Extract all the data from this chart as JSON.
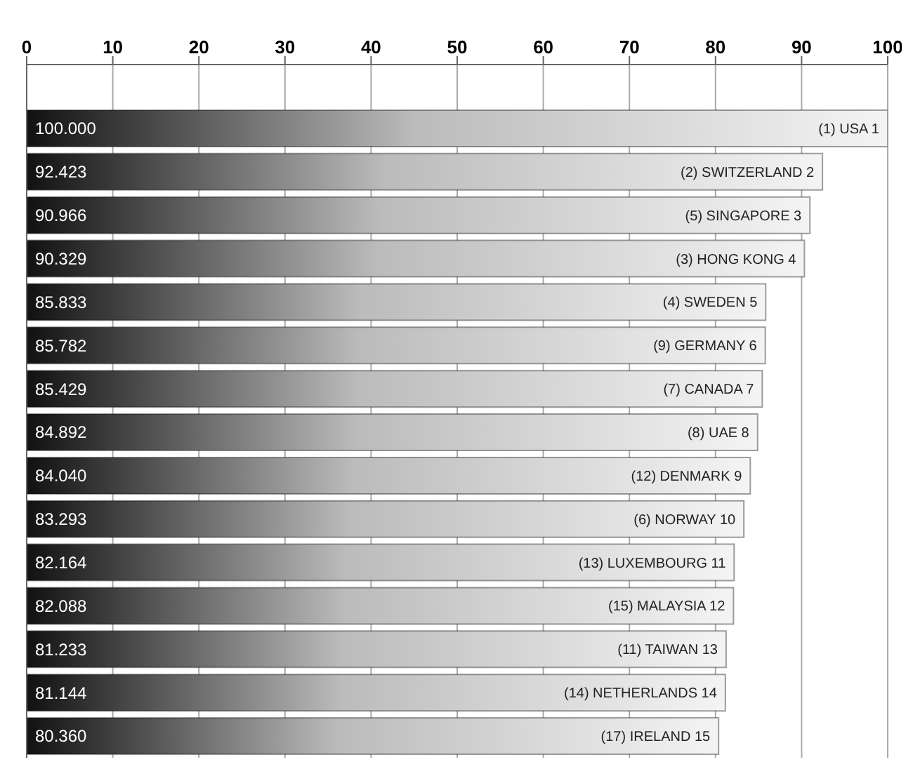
{
  "chart_data": {
    "type": "bar",
    "orientation": "horizontal",
    "categories": [
      "(1) USA 1",
      "(2) SWITZERLAND 2",
      "(5) SINGAPORE 3",
      "(3) HONG KONG 4",
      "(4) SWEDEN 5",
      "(9) GERMANY 6",
      "(7) CANADA 7",
      "(8) UAE 8",
      "(12) DENMARK 9",
      "(6) NORWAY 10",
      "(13) LUXEMBOURG 11",
      "(15) MALAYSIA 12",
      "(11) TAIWAN 13",
      "(14) NETHERLANDS 14",
      "(17) IRELAND 15"
    ],
    "values": [
      100.0,
      92.423,
      90.966,
      90.329,
      85.833,
      85.782,
      85.429,
      84.892,
      84.04,
      83.293,
      82.164,
      82.088,
      81.233,
      81.144,
      80.36
    ],
    "value_labels": [
      "100.000",
      "92.423",
      "90.966",
      "90.329",
      "85.833",
      "85.782",
      "85.429",
      "84.892",
      "84.040",
      "83.293",
      "82.164",
      "82.088",
      "81.233",
      "81.144",
      "80.360"
    ],
    "color": "#111111",
    "xlim": [
      0,
      100
    ],
    "xticks": [
      0,
      10,
      20,
      30,
      40,
      50,
      60,
      70,
      80,
      90,
      100
    ],
    "grid": "x",
    "tick_labels": "x"
  }
}
